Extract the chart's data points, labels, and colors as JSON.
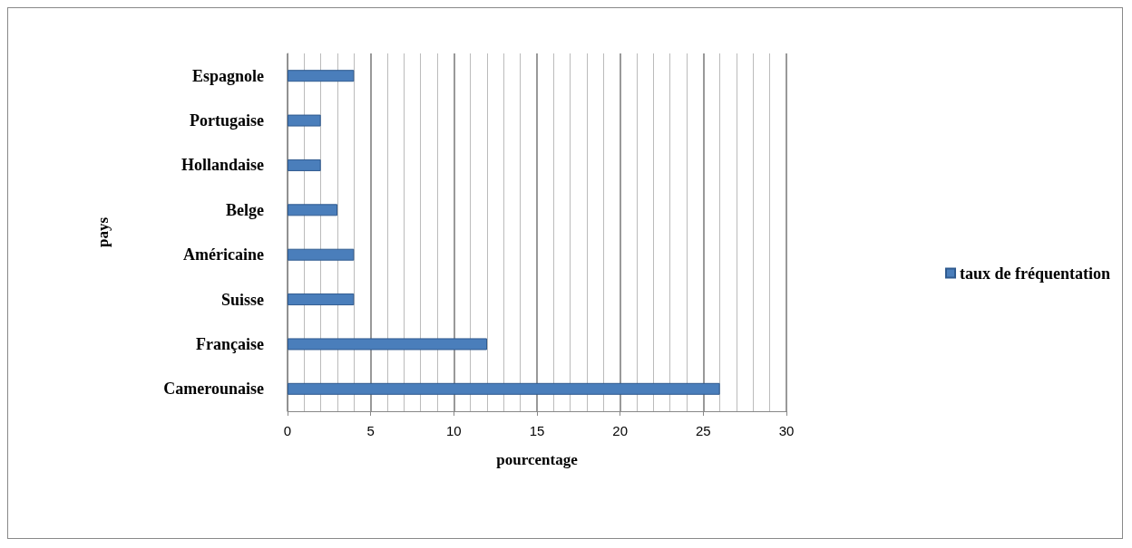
{
  "chart_data": {
    "type": "bar",
    "orientation": "horizontal",
    "xlabel": "pourcentage",
    "ylabel": "pays",
    "categories": [
      "Espagnole",
      "Portugaise",
      "Hollandaise",
      "Belge",
      "Américaine",
      "Suisse",
      "Française",
      "Camerounaise"
    ],
    "series": [
      {
        "name": "taux de fréquentation",
        "color": "#4a7ebb",
        "values": [
          4,
          2,
          2,
          3,
          4,
          4,
          12,
          26
        ]
      }
    ],
    "xlim": [
      0,
      30
    ],
    "xticks": [
      0,
      5,
      10,
      15,
      20,
      25,
      30
    ],
    "grid": "x",
    "legend": "right"
  }
}
